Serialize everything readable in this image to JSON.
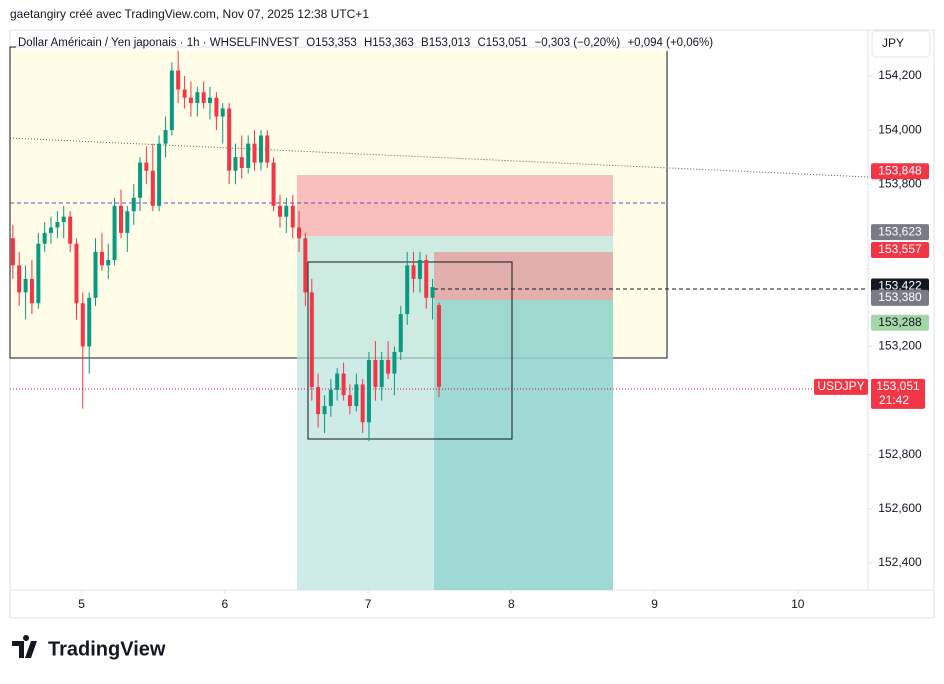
{
  "header": {
    "credit": "gaetangiry créé avec TradingView.com, Nov 07, 2025 12:38 UTC+1"
  },
  "legend": {
    "symbol": "Dollar Américain / Yen japonais · 1h · WHSELFINVEST",
    "open": "O153,353",
    "high": "H153,363",
    "low": "B153,013",
    "close": "C153,051",
    "change": "−0,303 (−0,20%)",
    "change2": "+0,094 (+0,06%)"
  },
  "currency_button": "JPY",
  "footer": {
    "brand": "TradingView"
  },
  "chart_data": {
    "type": "candlestick",
    "up_color": "#089981",
    "down_color": "#f23645",
    "xlim": [
      4.5,
      10.49
    ],
    "xticks": [
      5,
      6,
      7,
      8,
      9,
      10
    ],
    "ylim": [
      152.3,
      154.37
    ],
    "yticks": [
      {
        "value": 154.2,
        "label": "154,200"
      },
      {
        "value": 154.0,
        "label": "154,000"
      },
      {
        "value": 153.8,
        "label": "153,800"
      },
      {
        "value": 153.2,
        "label": "153,200"
      },
      {
        "value": 152.8,
        "label": "152,800"
      },
      {
        "value": 152.6,
        "label": "152,600"
      },
      {
        "value": 152.4,
        "label": "152,400"
      }
    ],
    "x": [
      4.52,
      4.564,
      4.609,
      4.653,
      4.698,
      4.742,
      4.786,
      4.831,
      4.875,
      4.92,
      4.964,
      5.008,
      5.053,
      5.097,
      5.142,
      5.186,
      5.23,
      5.275,
      5.319,
      5.364,
      5.408,
      5.452,
      5.497,
      5.541,
      5.586,
      5.63,
      5.674,
      5.719,
      5.763,
      5.808,
      5.852,
      5.896,
      5.941,
      5.985,
      6.03,
      6.074,
      6.118,
      6.163,
      6.207,
      6.252,
      6.296,
      6.34,
      6.385,
      6.429,
      6.474,
      6.518,
      6.562,
      6.607,
      6.651,
      6.696,
      6.74,
      6.784,
      6.829,
      6.873,
      6.918,
      6.962,
      7.006,
      7.051,
      7.095,
      7.14,
      7.184,
      7.228,
      7.273,
      7.317,
      7.362,
      7.406,
      7.45,
      7.495
    ],
    "open": [
      153.6,
      153.5,
      153.4,
      153.45,
      153.36,
      153.58,
      153.62,
      153.64,
      153.66,
      153.68,
      153.58,
      153.36,
      153.2,
      153.38,
      153.55,
      153.5,
      153.52,
      153.72,
      153.62,
      153.7,
      153.75,
      153.88,
      153.85,
      153.72,
      153.95,
      154.0,
      154.22,
      154.15,
      154.12,
      154.1,
      154.14,
      154.1,
      154.12,
      154.05,
      154.08,
      153.85,
      153.9,
      153.86,
      153.95,
      153.88,
      153.98,
      153.88,
      153.72,
      153.68,
      153.72,
      153.64,
      153.6,
      153.4,
      153.05,
      152.95,
      152.98,
      153.04,
      153.1,
      153.02,
      152.98,
      153.06,
      152.92,
      153.15,
      153.05,
      153.15,
      153.1,
      153.18,
      153.32,
      153.5,
      153.45,
      153.52,
      153.38,
      153.353
    ],
    "high": [
      153.65,
      153.55,
      153.5,
      153.52,
      153.62,
      153.66,
      153.68,
      153.7,
      153.72,
      153.7,
      153.6,
      153.4,
      153.4,
      153.6,
      153.62,
      153.58,
      153.75,
      153.78,
      153.72,
      153.8,
      153.9,
      153.94,
      153.95,
      153.98,
      154.05,
      154.25,
      154.32,
      154.2,
      154.18,
      154.16,
      154.18,
      154.16,
      154.14,
      154.1,
      154.1,
      153.95,
      153.98,
      153.98,
      154.0,
      154.0,
      154.0,
      153.9,
      153.76,
      153.75,
      153.76,
      153.7,
      153.62,
      153.45,
      153.1,
      153.02,
      153.08,
      153.12,
      153.14,
      153.06,
      153.1,
      153.08,
      153.18,
      153.22,
      153.18,
      153.22,
      153.2,
      153.35,
      153.55,
      153.55,
      153.55,
      153.54,
      153.45,
      153.363
    ],
    "low": [
      153.45,
      153.35,
      153.3,
      153.32,
      153.34,
      153.55,
      153.58,
      153.6,
      153.6,
      153.55,
      153.3,
      152.97,
      153.1,
      153.35,
      153.48,
      153.45,
      153.5,
      153.6,
      153.55,
      153.65,
      153.7,
      153.8,
      153.7,
      153.7,
      153.9,
      153.98,
      154.1,
      154.08,
      154.05,
      154.05,
      154.08,
      154.04,
      154.0,
      153.95,
      153.8,
      153.8,
      153.82,
      153.84,
      153.85,
      153.85,
      153.86,
      153.7,
      153.64,
      153.62,
      153.6,
      153.55,
      153.35,
      153.0,
      152.9,
      152.88,
      152.94,
      153.0,
      153.0,
      152.95,
      152.96,
      152.88,
      152.85,
      153.0,
      153.0,
      153.08,
      153.02,
      153.15,
      153.28,
      153.4,
      153.4,
      153.34,
      153.3,
      153.013
    ],
    "close": [
      153.5,
      153.4,
      153.45,
      153.36,
      153.58,
      153.62,
      153.64,
      153.66,
      153.68,
      153.58,
      153.36,
      153.2,
      153.38,
      153.55,
      153.5,
      153.52,
      153.72,
      153.62,
      153.7,
      153.75,
      153.88,
      153.85,
      153.72,
      153.95,
      154.0,
      154.22,
      154.15,
      154.12,
      154.1,
      154.14,
      154.1,
      154.12,
      154.05,
      154.08,
      153.85,
      153.9,
      153.86,
      153.95,
      153.88,
      153.98,
      153.88,
      153.72,
      153.68,
      153.72,
      153.64,
      153.6,
      153.4,
      153.05,
      152.95,
      152.98,
      153.04,
      153.1,
      153.02,
      152.98,
      153.06,
      152.92,
      153.15,
      153.05,
      153.15,
      153.1,
      153.18,
      153.32,
      153.5,
      153.45,
      153.52,
      153.38,
      153.42,
      153.051
    ],
    "price_labels": [
      {
        "value": 153.848,
        "label": "153,848",
        "color": "#f23645"
      },
      {
        "value": 153.623,
        "label": "153,623",
        "color": "#787b86"
      },
      {
        "value": 153.557,
        "label": "153,557",
        "color": "#f23645"
      },
      {
        "value": 153.422,
        "label": "153,422",
        "color": "#131722"
      },
      {
        "value": 153.38,
        "label": "153,380",
        "color": "#787b86"
      },
      {
        "value": 153.288,
        "label": "153,288",
        "color": "#a5d6a7"
      }
    ],
    "last_price": {
      "value": 153.051,
      "label": "153,051",
      "symbol": "USDJPY",
      "countdown": "21:42",
      "color": "#f23645"
    }
  }
}
